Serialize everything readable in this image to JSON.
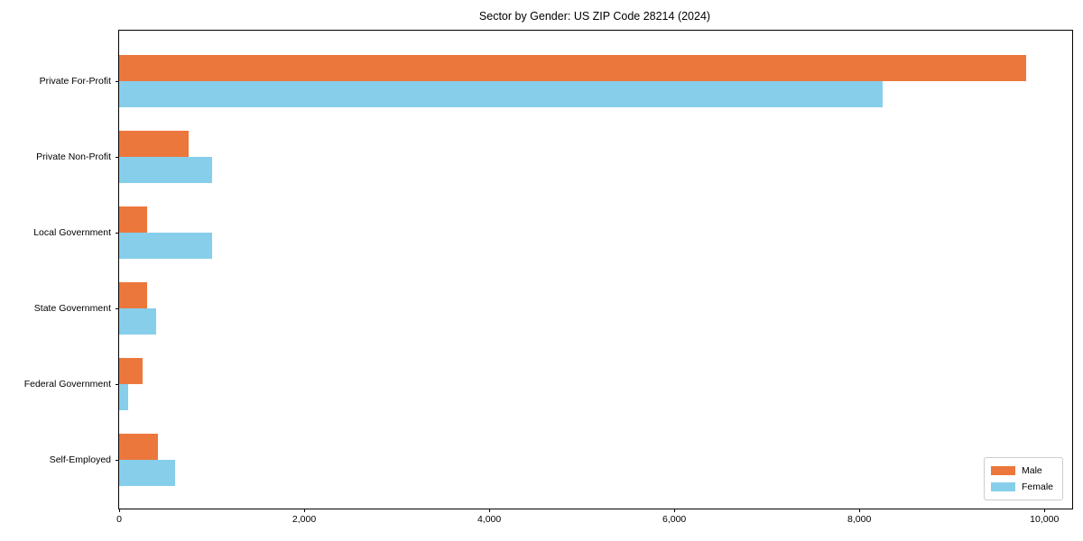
{
  "title": "Sector by Gender: US ZIP Code 28214 (2024)",
  "legend": {
    "male_label": "Male",
    "female_label": "Female"
  },
  "chart_data": {
    "type": "bar",
    "orientation": "horizontal",
    "title": "Sector by Gender: US ZIP Code 28214 (2024)",
    "xlabel": "",
    "ylabel": "",
    "categories": [
      "Private For-Profit",
      "Private Non-Profit",
      "Local Government",
      "State Government",
      "Federal Government",
      "Self-Employed"
    ],
    "series": [
      {
        "name": "Male",
        "color": "#ec773c",
        "values": [
          9800,
          750,
          300,
          300,
          250,
          420
        ]
      },
      {
        "name": "Female",
        "color": "#87ceeb",
        "values": [
          8250,
          1000,
          1000,
          400,
          100,
          600
        ]
      }
    ],
    "xlim": [
      0,
      10300
    ],
    "x_ticks": [
      0,
      2000,
      4000,
      6000,
      8000,
      10000
    ],
    "x_tick_labels": [
      "0",
      "2,000",
      "4,000",
      "6,000",
      "8,000",
      "10,000"
    ],
    "grid": false,
    "legend_position": "lower right",
    "background_color": "#ffffff",
    "spine_color": "#000000"
  }
}
